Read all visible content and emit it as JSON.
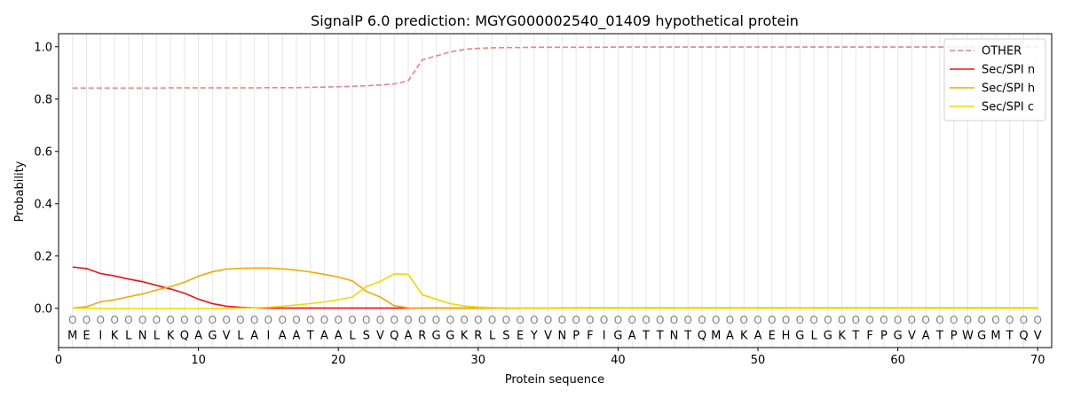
{
  "chart_data": {
    "type": "line",
    "title": "SignalP 6.0 prediction: MGYG000002540_01409 hypothetical protein",
    "xlabel": "Protein sequence",
    "ylabel": "Probability",
    "xlim": [
      0,
      71
    ],
    "ylim": [
      -0.15,
      1.05
    ],
    "xticks": [
      0,
      10,
      20,
      30,
      40,
      50,
      60,
      70
    ],
    "yticks": [
      0.0,
      0.2,
      0.4,
      0.6,
      0.8,
      1.0
    ],
    "ytick_labels": [
      "0.0",
      "0.2",
      "0.4",
      "0.6",
      "0.8",
      "1.0"
    ],
    "grid": "vertical lines at each residue",
    "legend_position": "top-right",
    "sequence": [
      "M",
      "E",
      "I",
      "K",
      "L",
      "N",
      "L",
      "K",
      "Q",
      "A",
      "G",
      "V",
      "L",
      "A",
      "I",
      "A",
      "A",
      "T",
      "A",
      "A",
      "L",
      "S",
      "V",
      "Q",
      "A",
      "R",
      "G",
      "G",
      "K",
      "R",
      "L",
      "S",
      "E",
      "Y",
      "V",
      "N",
      "P",
      "F",
      "I",
      "G",
      "A",
      "T",
      "T",
      "N",
      "T",
      "Q",
      "M",
      "A",
      "K",
      "A",
      "E",
      "H",
      "G",
      "L",
      "G",
      "K",
      "T",
      "F",
      "P",
      "G",
      "V",
      "A",
      "T",
      "P",
      "W",
      "G",
      "M",
      "T",
      "Q",
      "V"
    ],
    "state_label": "O",
    "series": [
      {
        "name": "OTHER",
        "color": "#f08080",
        "dash": "dashed",
        "values": [
          0.842,
          0.842,
          0.842,
          0.842,
          0.842,
          0.842,
          0.842,
          0.843,
          0.843,
          0.843,
          0.843,
          0.843,
          0.843,
          0.843,
          0.844,
          0.844,
          0.844,
          0.845,
          0.846,
          0.847,
          0.849,
          0.851,
          0.854,
          0.858,
          0.87,
          0.95,
          0.965,
          0.98,
          0.99,
          0.994,
          0.996,
          0.997,
          0.997,
          0.998,
          0.998,
          0.998,
          0.998,
          0.998,
          0.998,
          0.999,
          0.999,
          0.999,
          0.999,
          0.999,
          0.999,
          0.999,
          0.999,
          0.999,
          0.999,
          0.999,
          0.999,
          0.999,
          0.999,
          0.999,
          0.999,
          0.999,
          0.999,
          0.999,
          0.999,
          0.999,
          0.999,
          0.999,
          0.999,
          0.999,
          0.999,
          0.999,
          0.999,
          0.999,
          0.999,
          0.999
        ]
      },
      {
        "name": "Sec/SPI n",
        "color": "#ee1111",
        "dash": "solid",
        "values": [
          0.158,
          0.152,
          0.133,
          0.124,
          0.112,
          0.102,
          0.088,
          0.074,
          0.058,
          0.035,
          0.018,
          0.008,
          0.004,
          0.002,
          0.001,
          0.001,
          0.001,
          0.001,
          0.001,
          0.001,
          0.001,
          0.001,
          0.001,
          0.001,
          0.001,
          0.001,
          0.001,
          0.001,
          0.001,
          0.001,
          0.001,
          0.001,
          0.001,
          0.001,
          0.001,
          0.001,
          0.001,
          0.001,
          0.001,
          0.001,
          0.001,
          0.001,
          0.001,
          0.001,
          0.001,
          0.001,
          0.001,
          0.001,
          0.001,
          0.001,
          0.001,
          0.001,
          0.001,
          0.001,
          0.001,
          0.001,
          0.001,
          0.001,
          0.001,
          0.001,
          0.001,
          0.001,
          0.001,
          0.001,
          0.001,
          0.001,
          0.001,
          0.001,
          0.001,
          0.001
        ]
      },
      {
        "name": "Sec/SPI h",
        "color": "#f5a800",
        "dash": "solid",
        "values": [
          0.001,
          0.006,
          0.025,
          0.033,
          0.044,
          0.055,
          0.07,
          0.083,
          0.1,
          0.123,
          0.14,
          0.15,
          0.153,
          0.154,
          0.154,
          0.151,
          0.146,
          0.139,
          0.13,
          0.12,
          0.105,
          0.065,
          0.043,
          0.01,
          0.002,
          0.001,
          0.001,
          0.001,
          0.001,
          0.001,
          0.001,
          0.001,
          0.001,
          0.001,
          0.001,
          0.001,
          0.001,
          0.001,
          0.001,
          0.001,
          0.001,
          0.001,
          0.001,
          0.001,
          0.001,
          0.001,
          0.001,
          0.001,
          0.001,
          0.001,
          0.001,
          0.001,
          0.001,
          0.001,
          0.001,
          0.001,
          0.001,
          0.001,
          0.001,
          0.001,
          0.001,
          0.001,
          0.001,
          0.001,
          0.001,
          0.001,
          0.001,
          0.001,
          0.001,
          0.001
        ]
      },
      {
        "name": "Sec/SPI c",
        "color": "#f5d800",
        "dash": "solid",
        "values": [
          0.0,
          0.0,
          0.0,
          0.0,
          0.0,
          0.0,
          0.0,
          0.0,
          0.0,
          0.0,
          0.0,
          0.0,
          0.001,
          0.002,
          0.004,
          0.008,
          0.013,
          0.018,
          0.025,
          0.033,
          0.043,
          0.083,
          0.103,
          0.132,
          0.13,
          0.052,
          0.035,
          0.018,
          0.009,
          0.005,
          0.003,
          0.002,
          0.001,
          0.001,
          0.001,
          0.0,
          0.0,
          0.0,
          0.0,
          0.0,
          0.0,
          0.0,
          0.0,
          0.0,
          0.0,
          0.0,
          0.0,
          0.0,
          0.0,
          0.0,
          0.0,
          0.0,
          0.0,
          0.0,
          0.0,
          0.0,
          0.0,
          0.0,
          0.0,
          0.0,
          0.0,
          0.0,
          0.0,
          0.0,
          0.0,
          0.0,
          0.0,
          0.0,
          0.0,
          0.0
        ]
      }
    ]
  }
}
